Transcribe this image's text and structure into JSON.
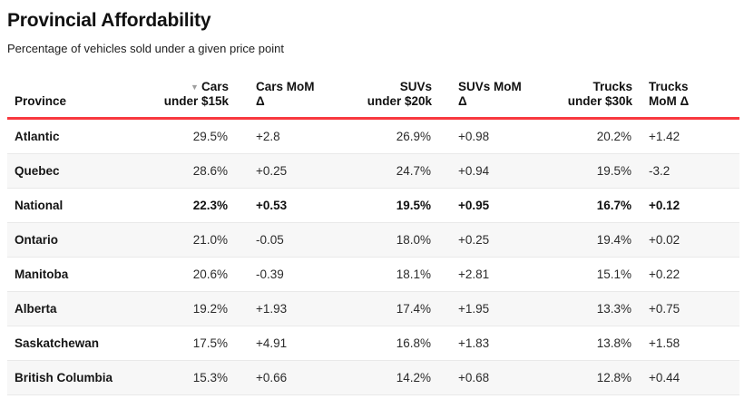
{
  "page": {
    "title": "Provincial Affordability",
    "subtitle": "Percentage of vehicles sold under a given price point"
  },
  "colors": {
    "header_rule": "#f8393f",
    "row_stripe": "#f7f7f7",
    "divider": "#e9e9e9",
    "sort_icon": "#9e9e9e"
  },
  "table": {
    "sort_icon_glyph": "▼",
    "columns": [
      {
        "id": "province",
        "label_lines": [
          "Province"
        ],
        "align": "left",
        "sorted": false
      },
      {
        "id": "cars-under-15k",
        "label_lines": [
          "Cars",
          "under $15k"
        ],
        "align": "right",
        "sorted": true
      },
      {
        "id": "cars-mom-delta",
        "label_lines": [
          "Cars MoM",
          "Δ"
        ],
        "align": "left",
        "sorted": false
      },
      {
        "id": "suvs-under-20k",
        "label_lines": [
          "SUVs",
          "under $20k"
        ],
        "align": "right",
        "sorted": false
      },
      {
        "id": "suvs-mom-delta",
        "label_lines": [
          "SUVs MoM",
          "Δ"
        ],
        "align": "left",
        "sorted": false
      },
      {
        "id": "trucks-under-30k",
        "label_lines": [
          "Trucks",
          "under $30k"
        ],
        "align": "right",
        "sorted": false
      },
      {
        "id": "trucks-mom-delta",
        "label_lines": [
          "Trucks",
          "MoM Δ"
        ],
        "align": "left",
        "sorted": false
      }
    ],
    "rows": [
      {
        "province": "Atlantic",
        "values": [
          "29.5%",
          "+2.8",
          "26.9%",
          "+0.98",
          "20.2%",
          "+1.42"
        ],
        "bold": false
      },
      {
        "province": "Quebec",
        "values": [
          "28.6%",
          "+0.25",
          "24.7%",
          "+0.94",
          "19.5%",
          "-3.2"
        ],
        "bold": false
      },
      {
        "province": "National",
        "values": [
          "22.3%",
          "+0.53",
          "19.5%",
          "+0.95",
          "16.7%",
          "+0.12"
        ],
        "bold": true
      },
      {
        "province": "Ontario",
        "values": [
          "21.0%",
          "-0.05",
          "18.0%",
          "+0.25",
          "19.4%",
          "+0.02"
        ],
        "bold": false
      },
      {
        "province": "Manitoba",
        "values": [
          "20.6%",
          "-0.39",
          "18.1%",
          "+2.81",
          "15.1%",
          "+0.22"
        ],
        "bold": false
      },
      {
        "province": "Alberta",
        "values": [
          "19.2%",
          "+1.93",
          "17.4%",
          "+1.95",
          "13.3%",
          "+0.75"
        ],
        "bold": false
      },
      {
        "province": "Saskatchewan",
        "values": [
          "17.5%",
          "+4.91",
          "16.8%",
          "+1.83",
          "13.8%",
          "+1.58"
        ],
        "bold": false
      },
      {
        "province": "British Columbia",
        "values": [
          "15.3%",
          "+0.66",
          "14.2%",
          "+0.68",
          "12.8%",
          "+0.44"
        ],
        "bold": false
      }
    ]
  },
  "chart_data": {
    "type": "table",
    "title": "Provincial Affordability",
    "subtitle": "Percentage of vehicles sold under a given price point",
    "columns": [
      "Province",
      "Cars under $15k",
      "Cars MoM Δ",
      "SUVs under $20k",
      "SUVs MoM Δ",
      "Trucks under $30k",
      "Trucks MoM Δ"
    ],
    "sorted_by": "Cars under $15k",
    "sort_direction": "descending",
    "emphasized_row": "National",
    "rows": [
      [
        "Atlantic",
        "29.5%",
        "+2.8",
        "26.9%",
        "+0.98",
        "20.2%",
        "+1.42"
      ],
      [
        "Quebec",
        "28.6%",
        "+0.25",
        "24.7%",
        "+0.94",
        "19.5%",
        "-3.2"
      ],
      [
        "National",
        "22.3%",
        "+0.53",
        "19.5%",
        "+0.95",
        "16.7%",
        "+0.12"
      ],
      [
        "Ontario",
        "21.0%",
        "-0.05",
        "18.0%",
        "+0.25",
        "19.4%",
        "+0.02"
      ],
      [
        "Manitoba",
        "20.6%",
        "-0.39",
        "18.1%",
        "+2.81",
        "15.1%",
        "+0.22"
      ],
      [
        "Alberta",
        "19.2%",
        "+1.93",
        "17.4%",
        "+1.95",
        "13.3%",
        "+0.75"
      ],
      [
        "Saskatchewan",
        "17.5%",
        "+4.91",
        "16.8%",
        "+1.83",
        "13.8%",
        "+1.58"
      ],
      [
        "British Columbia",
        "15.3%",
        "+0.66",
        "14.2%",
        "+0.68",
        "12.8%",
        "+0.44"
      ]
    ]
  }
}
